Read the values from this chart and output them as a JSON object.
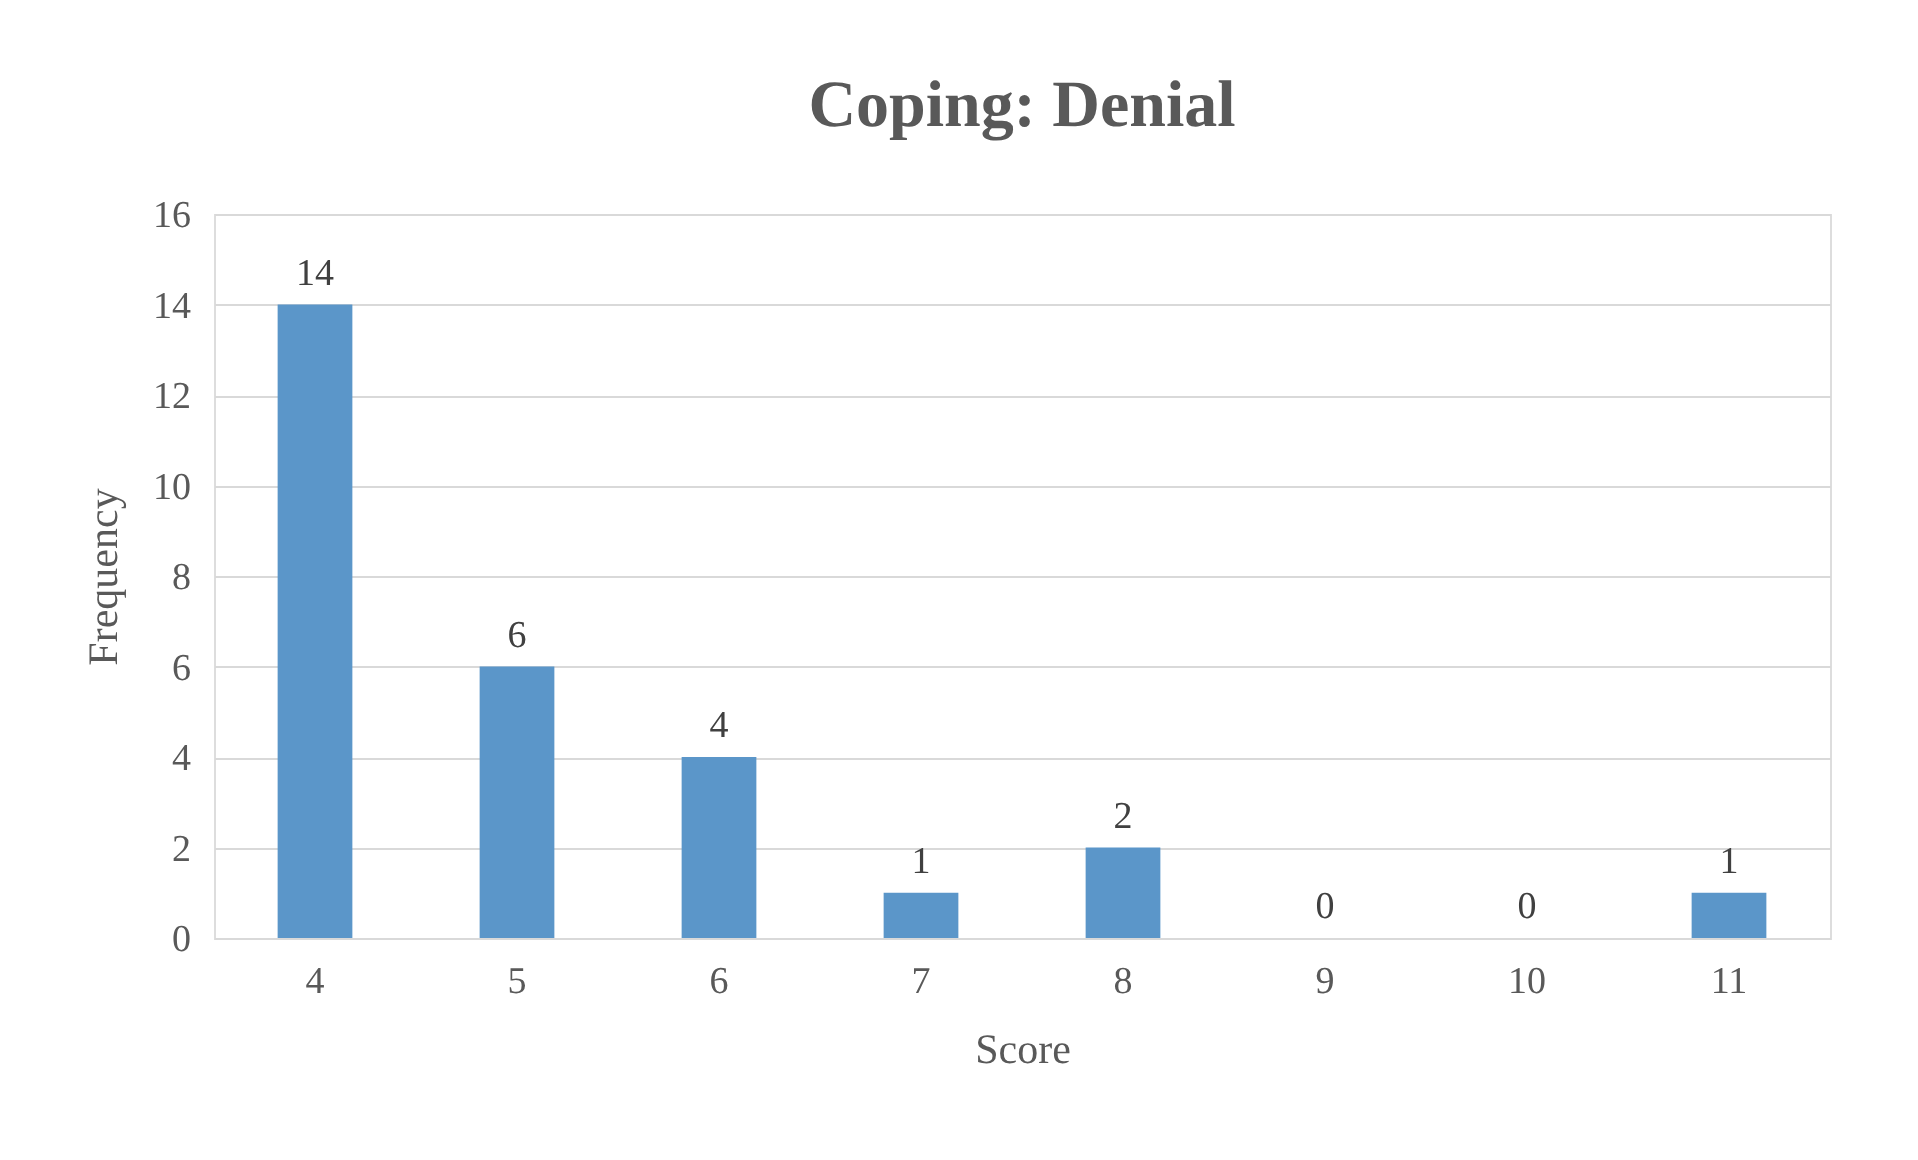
{
  "chart_data": {
    "type": "bar",
    "title": "Coping: Denial",
    "xlabel": "Score",
    "ylabel": "Frequency",
    "categories": [
      "4",
      "5",
      "6",
      "7",
      "8",
      "9",
      "10",
      "11"
    ],
    "values": [
      14,
      6,
      4,
      1,
      2,
      0,
      0,
      1
    ],
    "color": "#5b96c9",
    "ylim": [
      0,
      16
    ],
    "yticks": [
      0,
      2,
      4,
      6,
      8,
      10,
      12,
      14,
      16
    ],
    "grid": "y",
    "data_labels": true
  }
}
